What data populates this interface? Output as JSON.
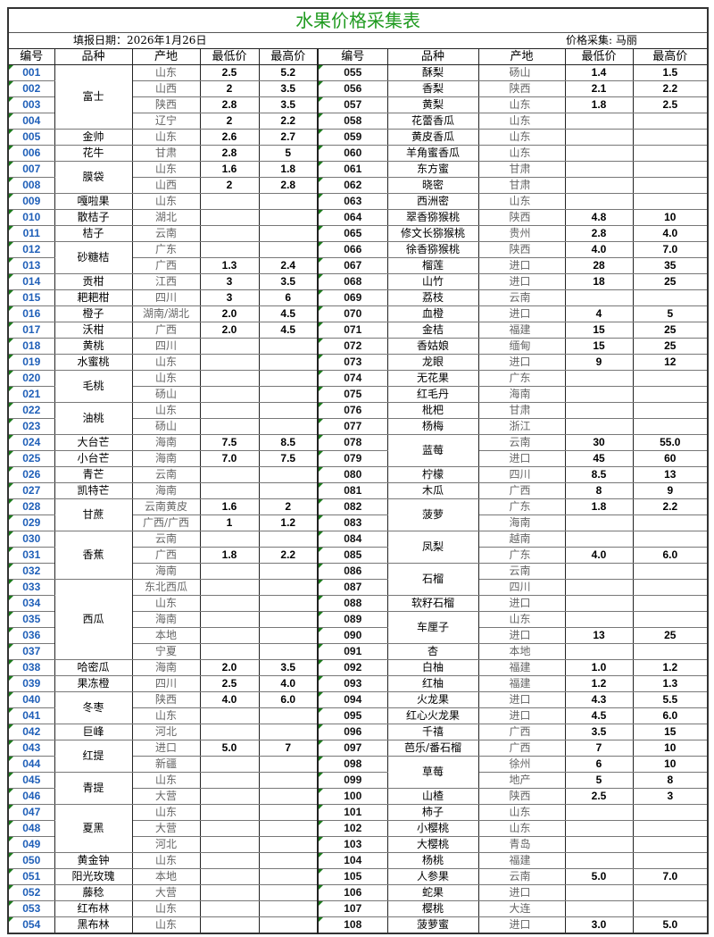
{
  "title": "水果价格采集表",
  "fill_date": "填报日期：2026年1月26日",
  "collector": "价格采集: 马丽",
  "headers": [
    "编号",
    "品种",
    "产地",
    "最低价",
    "最高价",
    "编号",
    "品种",
    "产地",
    "最低价",
    "最高价"
  ],
  "colors": {
    "title": "#1f9a1f",
    "left_id": "#1f5fb8",
    "indicator": "#1a7a1a"
  },
  "left": [
    {
      "variety": "富士",
      "rows": [
        [
          "001",
          "山东",
          "2.5",
          "5.2"
        ],
        [
          "002",
          "山西",
          "2",
          "3.5"
        ],
        [
          "003",
          "陕西",
          "2.8",
          "3.5"
        ],
        [
          "004",
          "辽宁",
          "2",
          "2.2"
        ]
      ]
    },
    {
      "variety": "金帅",
      "rows": [
        [
          "005",
          "山东",
          "2.6",
          "2.7"
        ]
      ]
    },
    {
      "variety": "花牛",
      "rows": [
        [
          "006",
          "甘肃",
          "2.8",
          "5"
        ]
      ]
    },
    {
      "variety": "膜袋",
      "rows": [
        [
          "007",
          "山东",
          "1.6",
          "1.8"
        ],
        [
          "008",
          "山西",
          "2",
          "2.8"
        ]
      ]
    },
    {
      "variety": "嘎啦果",
      "rows": [
        [
          "009",
          "山东",
          "",
          ""
        ]
      ]
    },
    {
      "variety": "散桔子",
      "rows": [
        [
          "010",
          "湖北",
          "",
          ""
        ]
      ]
    },
    {
      "variety": "桔子",
      "rows": [
        [
          "011",
          "云南",
          "",
          ""
        ]
      ]
    },
    {
      "variety": "砂糖桔",
      "rows": [
        [
          "012",
          "广东",
          "",
          ""
        ],
        [
          "013",
          "广西",
          "1.3",
          "2.4"
        ]
      ]
    },
    {
      "variety": "贡柑",
      "rows": [
        [
          "014",
          "江西",
          "3",
          "3.5"
        ]
      ]
    },
    {
      "variety": "耙耙柑",
      "rows": [
        [
          "015",
          "四川",
          "3",
          "6"
        ]
      ]
    },
    {
      "variety": "橙子",
      "rows": [
        [
          "016",
          "湖南/湖北",
          "2.0",
          "4.5"
        ]
      ]
    },
    {
      "variety": "沃柑",
      "rows": [
        [
          "017",
          "广西",
          "2.0",
          "4.5"
        ]
      ]
    },
    {
      "variety": "黄桃",
      "rows": [
        [
          "018",
          "四川",
          "",
          ""
        ]
      ]
    },
    {
      "variety": "水蜜桃",
      "rows": [
        [
          "019",
          "山东",
          "",
          ""
        ]
      ]
    },
    {
      "variety": "毛桃",
      "rows": [
        [
          "020",
          "山东",
          "",
          ""
        ],
        [
          "021",
          "砀山",
          "",
          ""
        ]
      ]
    },
    {
      "variety": "油桃",
      "rows": [
        [
          "022",
          "山东",
          "",
          ""
        ],
        [
          "023",
          "砀山",
          "",
          ""
        ]
      ]
    },
    {
      "variety": "大台芒",
      "rows": [
        [
          "024",
          "海南",
          "7.5",
          "8.5"
        ]
      ]
    },
    {
      "variety": "小台芒",
      "rows": [
        [
          "025",
          "海南",
          "7.0",
          "7.5"
        ]
      ]
    },
    {
      "variety": "青芒",
      "rows": [
        [
          "026",
          "云南",
          "",
          ""
        ]
      ]
    },
    {
      "variety": "凯特芒",
      "rows": [
        [
          "027",
          "海南",
          "",
          ""
        ]
      ]
    },
    {
      "variety": "甘蔗",
      "rows": [
        [
          "028",
          "云南黄皮",
          "1.6",
          "2"
        ],
        [
          "029",
          "广西/广西",
          "1",
          "1.2"
        ]
      ]
    },
    {
      "variety": "香蕉",
      "rows": [
        [
          "030",
          "云南",
          "",
          ""
        ],
        [
          "031",
          "广西",
          "1.8",
          "2.2"
        ],
        [
          "032",
          "海南",
          "",
          ""
        ]
      ]
    },
    {
      "variety": "西瓜",
      "rows": [
        [
          "033",
          "东北西瓜",
          "",
          ""
        ],
        [
          "034",
          "山东",
          "",
          ""
        ],
        [
          "035",
          "海南",
          "",
          ""
        ],
        [
          "036",
          "本地",
          "",
          ""
        ],
        [
          "037",
          "宁夏",
          "",
          ""
        ]
      ]
    },
    {
      "variety": "哈密瓜",
      "rows": [
        [
          "038",
          "海南",
          "2.0",
          "3.5"
        ]
      ]
    },
    {
      "variety": "果冻橙",
      "rows": [
        [
          "039",
          "四川",
          "2.5",
          "4.0"
        ]
      ]
    },
    {
      "variety": "冬枣",
      "rows": [
        [
          "040",
          "陕西",
          "4.0",
          "6.0"
        ],
        [
          "041",
          "山东",
          "",
          ""
        ]
      ]
    },
    {
      "variety": "巨峰",
      "rows": [
        [
          "042",
          "河北",
          "",
          ""
        ]
      ]
    },
    {
      "variety": "红提",
      "rows": [
        [
          "043",
          "进口",
          "5.0",
          "7"
        ],
        [
          "044",
          "新疆",
          "",
          ""
        ]
      ]
    },
    {
      "variety": "青提",
      "rows": [
        [
          "045",
          "山东",
          "",
          ""
        ],
        [
          "046",
          "大营",
          "",
          ""
        ]
      ]
    },
    {
      "variety": "夏黑",
      "rows": [
        [
          "047",
          "山东",
          "",
          ""
        ],
        [
          "048",
          "大营",
          "",
          ""
        ],
        [
          "049",
          "河北",
          "",
          ""
        ]
      ]
    },
    {
      "variety": "黄金钟",
      "rows": [
        [
          "050",
          "山东",
          "",
          ""
        ]
      ]
    },
    {
      "variety": "阳光玫瑰",
      "rows": [
        [
          "051",
          "本地",
          "",
          ""
        ]
      ]
    },
    {
      "variety": "藤稔",
      "rows": [
        [
          "052",
          "大营",
          "",
          ""
        ]
      ]
    },
    {
      "variety": "红布林",
      "rows": [
        [
          "053",
          "山东",
          "",
          ""
        ]
      ]
    },
    {
      "variety": "黑布林",
      "rows": [
        [
          "054",
          "山东",
          "",
          ""
        ]
      ]
    }
  ],
  "right": [
    {
      "variety": "酥梨",
      "rows": [
        [
          "055",
          "砀山",
          "1.4",
          "1.5"
        ]
      ]
    },
    {
      "variety": "香梨",
      "rows": [
        [
          "056",
          "陕西",
          "2.1",
          "2.2"
        ]
      ]
    },
    {
      "variety": "黄梨",
      "rows": [
        [
          "057",
          "山东",
          "1.8",
          "2.5"
        ]
      ]
    },
    {
      "variety": "花蕾香瓜",
      "rows": [
        [
          "058",
          "山东",
          "",
          ""
        ]
      ]
    },
    {
      "variety": "黄皮香瓜",
      "rows": [
        [
          "059",
          "山东",
          "",
          ""
        ]
      ]
    },
    {
      "variety": "羊角蜜香瓜",
      "rows": [
        [
          "060",
          "山东",
          "",
          ""
        ]
      ]
    },
    {
      "variety": "东方蜜",
      "rows": [
        [
          "061",
          "甘肃",
          "",
          ""
        ]
      ]
    },
    {
      "variety": "晓密",
      "rows": [
        [
          "062",
          "甘肃",
          "",
          ""
        ]
      ]
    },
    {
      "variety": "西洲密",
      "rows": [
        [
          "063",
          "山东",
          "",
          ""
        ]
      ]
    },
    {
      "variety": "翠香猕猴桃",
      "rows": [
        [
          "064",
          "陕西",
          "4.8",
          "10"
        ]
      ]
    },
    {
      "variety": "修文长猕猴桃",
      "rows": [
        [
          "065",
          "贵州",
          "2.8",
          "4.0"
        ]
      ]
    },
    {
      "variety": "徐香猕猴桃",
      "rows": [
        [
          "066",
          "陕西",
          "4.0",
          "7.0"
        ]
      ]
    },
    {
      "variety": "榴莲",
      "rows": [
        [
          "067",
          "进口",
          "28",
          "35"
        ]
      ]
    },
    {
      "variety": "山竹",
      "rows": [
        [
          "068",
          "进口",
          "18",
          "25"
        ]
      ]
    },
    {
      "variety": "荔枝",
      "rows": [
        [
          "069",
          "云南",
          "",
          ""
        ]
      ]
    },
    {
      "variety": "血橙",
      "rows": [
        [
          "070",
          "进口",
          "4",
          "5"
        ]
      ]
    },
    {
      "variety": "金桔",
      "rows": [
        [
          "071",
          "福建",
          "15",
          "25"
        ]
      ]
    },
    {
      "variety": "香姑娘",
      "rows": [
        [
          "072",
          "缅甸",
          "15",
          "25"
        ]
      ]
    },
    {
      "variety": "龙眼",
      "rows": [
        [
          "073",
          "进口",
          "9",
          "12"
        ]
      ]
    },
    {
      "variety": "无花果",
      "rows": [
        [
          "074",
          "广东",
          "",
          ""
        ]
      ]
    },
    {
      "variety": "红毛丹",
      "rows": [
        [
          "075",
          "海南",
          "",
          ""
        ]
      ]
    },
    {
      "variety": "枇杷",
      "rows": [
        [
          "076",
          "甘肃",
          "",
          ""
        ]
      ]
    },
    {
      "variety": "杨梅",
      "rows": [
        [
          "077",
          "浙江",
          "",
          ""
        ]
      ]
    },
    {
      "variety": "蓝莓",
      "rows": [
        [
          "078",
          "云南",
          "30",
          "55.0"
        ],
        [
          "079",
          "进口",
          "45",
          "60"
        ]
      ]
    },
    {
      "variety": "柠檬",
      "rows": [
        [
          "080",
          "四川",
          "8.5",
          "13"
        ]
      ]
    },
    {
      "variety": "木瓜",
      "rows": [
        [
          "081",
          "广西",
          "8",
          "9"
        ]
      ]
    },
    {
      "variety": "菠萝",
      "rows": [
        [
          "082",
          "广东",
          "1.8",
          "2.2"
        ],
        [
          "083",
          "海南",
          "",
          ""
        ]
      ]
    },
    {
      "variety": "凤梨",
      "rows": [
        [
          "084",
          "越南",
          "",
          ""
        ],
        [
          "085",
          "广东",
          "4.0",
          "6.0"
        ]
      ]
    },
    {
      "variety": "石榴",
      "rows": [
        [
          "086",
          "云南",
          "",
          ""
        ],
        [
          "087",
          "四川",
          "",
          ""
        ]
      ]
    },
    {
      "variety": "软籽石榴",
      "rows": [
        [
          "088",
          "进口",
          "",
          ""
        ]
      ]
    },
    {
      "variety": "车厘子",
      "rows": [
        [
          "089",
          "山东",
          "",
          ""
        ],
        [
          "090",
          "进口",
          "13",
          "25"
        ]
      ]
    },
    {
      "variety": "杏",
      "rows": [
        [
          "091",
          "本地",
          "",
          ""
        ]
      ]
    },
    {
      "variety": "白柚",
      "rows": [
        [
          "092",
          "福建",
          "1.0",
          "1.2"
        ]
      ]
    },
    {
      "variety": "红柚",
      "rows": [
        [
          "093",
          "福建",
          "1.2",
          "1.3"
        ]
      ]
    },
    {
      "variety": "火龙果",
      "rows": [
        [
          "094",
          "进口",
          "4.3",
          "5.5"
        ]
      ]
    },
    {
      "variety": "红心火龙果",
      "rows": [
        [
          "095",
          "进口",
          "4.5",
          "6.0"
        ]
      ]
    },
    {
      "variety": "千禧",
      "rows": [
        [
          "096",
          "广西",
          "3.5",
          "15"
        ]
      ]
    },
    {
      "variety": "芭乐/番石榴",
      "rows": [
        [
          "097",
          "广西",
          "7",
          "10"
        ]
      ]
    },
    {
      "variety": "草莓",
      "rows": [
        [
          "098",
          "徐州",
          "6",
          "10"
        ],
        [
          "099",
          "地产",
          "5",
          "8"
        ]
      ]
    },
    {
      "variety": "山楂",
      "rows": [
        [
          "100",
          "陕西",
          "2.5",
          "3"
        ]
      ]
    },
    {
      "variety": "柿子",
      "rows": [
        [
          "101",
          "山东",
          "",
          ""
        ]
      ]
    },
    {
      "variety": "小樱桃",
      "rows": [
        [
          "102",
          "山东",
          "",
          ""
        ]
      ]
    },
    {
      "variety": "大樱桃",
      "rows": [
        [
          "103",
          "青岛",
          "",
          ""
        ]
      ]
    },
    {
      "variety": "杨桃",
      "rows": [
        [
          "104",
          "福建",
          "",
          ""
        ]
      ]
    },
    {
      "variety": "人参果",
      "rows": [
        [
          "105",
          "云南",
          "5.0",
          "7.0"
        ]
      ]
    },
    {
      "variety": "蛇果",
      "rows": [
        [
          "106",
          "进口",
          "",
          ""
        ]
      ]
    },
    {
      "variety": "樱桃",
      "rows": [
        [
          "107",
          "大连",
          "",
          ""
        ]
      ]
    },
    {
      "variety": "菠萝蜜",
      "rows": [
        [
          "108",
          "进口",
          "3.0",
          "5.0"
        ]
      ]
    }
  ]
}
